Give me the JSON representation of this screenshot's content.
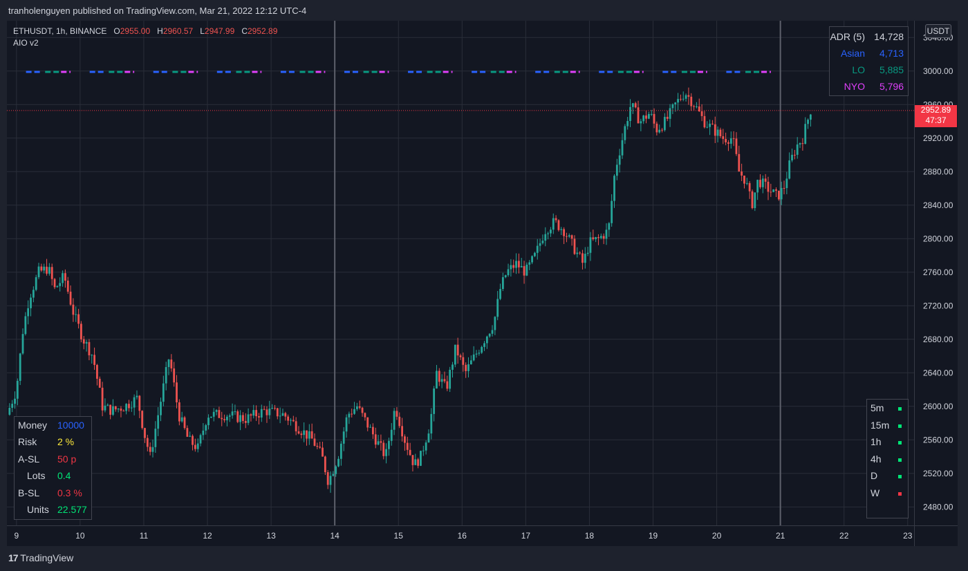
{
  "header": {
    "published": "tranholenguyen published on TradingView.com, Mar 21, 2022 12:12 UTC-4"
  },
  "legend": {
    "symbol": "ETHUSDT, 1h, BINANCE",
    "o_label": "O",
    "o_value": "2955.00",
    "h_label": "H",
    "h_value": "2960.57",
    "l_label": "L",
    "l_value": "2947.99",
    "c_label": "C",
    "c_value": "2952.89",
    "indicator": "AIO v2"
  },
  "adr_table": {
    "rows": [
      {
        "label": "ADR (5)",
        "value": "14,728",
        "color": "#d1d4dc"
      },
      {
        "label": "Asian",
        "value": "4,713",
        "color": "#2962ff"
      },
      {
        "label": "LO",
        "value": "5,885",
        "color": "#089981"
      },
      {
        "label": "NYO",
        "value": "5,796",
        "color": "#e040fb"
      }
    ]
  },
  "risk_table": {
    "rows": [
      {
        "label": "Money",
        "value": "10000",
        "color": "#2962ff"
      },
      {
        "label": "Risk",
        "value": "2 %",
        "color": "#ffeb3b"
      },
      {
        "label": "A-SL",
        "value": "50 p",
        "color": "#f23645"
      },
      {
        "label": "Lots",
        "value": "0.4",
        "color": "#00e676"
      },
      {
        "label": "B-SL",
        "value": "0.3 %",
        "color": "#f23645"
      },
      {
        "label": "Units",
        "value": "22.577",
        "color": "#00e676"
      }
    ]
  },
  "timeframe_table": {
    "rows": [
      {
        "label": "5m",
        "color": "#00e676"
      },
      {
        "label": "15m",
        "color": "#00e676"
      },
      {
        "label": "1h",
        "color": "#00e676"
      },
      {
        "label": "4h",
        "color": "#00e676"
      },
      {
        "label": "D",
        "color": "#00e676"
      },
      {
        "label": "W",
        "color": "#f23645"
      }
    ]
  },
  "price_axis": {
    "currency": "USDT",
    "last_price": "2952.89",
    "countdown": "47:37"
  },
  "footer": {
    "brand": "TradingView"
  },
  "colors": {
    "up": "#26a69a",
    "down": "#ef5350",
    "background": "#131722",
    "grid": "#2a2e39",
    "text": "#d1d4dc"
  },
  "chart_data": {
    "type": "candlestick",
    "symbol": "ETHUSDT",
    "interval": "1h",
    "exchange": "BINANCE",
    "x_ticks": [
      "9",
      "10",
      "11",
      "12",
      "13",
      "14",
      "15",
      "16",
      "17",
      "18",
      "19",
      "20",
      "21",
      "22",
      "23"
    ],
    "y_ticks": [
      "2480.00",
      "2520.00",
      "2560.00",
      "2600.00",
      "2640.00",
      "2680.00",
      "2720.00",
      "2760.00",
      "2800.00",
      "2840.00",
      "2880.00",
      "2920.00",
      "2960.00",
      "3000.00",
      "3040.00"
    ],
    "ylim": [
      2458,
      3060
    ],
    "xlim": [
      8.85,
      23.1
    ],
    "grid": true,
    "last_price_line": 2952.89,
    "day_separators": [
      14,
      21
    ],
    "session_line_price": 2999,
    "path": [
      [
        8.85,
        2590
      ],
      [
        9.0,
        2620
      ],
      [
        9.1,
        2690
      ],
      [
        9.2,
        2730
      ],
      [
        9.35,
        2760
      ],
      [
        9.5,
        2765
      ],
      [
        9.6,
        2740
      ],
      [
        9.75,
        2755
      ],
      [
        9.9,
        2710
      ],
      [
        10.05,
        2680
      ],
      [
        10.2,
        2660
      ],
      [
        10.35,
        2600
      ],
      [
        10.5,
        2595
      ],
      [
        10.7,
        2600
      ],
      [
        10.9,
        2610
      ],
      [
        11.0,
        2570
      ],
      [
        11.1,
        2540
      ],
      [
        11.25,
        2600
      ],
      [
        11.4,
        2660
      ],
      [
        11.55,
        2590
      ],
      [
        11.7,
        2560
      ],
      [
        11.85,
        2550
      ],
      [
        12.0,
        2590
      ],
      [
        12.3,
        2590
      ],
      [
        12.6,
        2585
      ],
      [
        12.9,
        2595
      ],
      [
        13.2,
        2590
      ],
      [
        13.5,
        2570
      ],
      [
        13.65,
        2560
      ],
      [
        13.8,
        2540
      ],
      [
        13.9,
        2510
      ],
      [
        14.05,
        2540
      ],
      [
        14.2,
        2590
      ],
      [
        14.35,
        2600
      ],
      [
        14.5,
        2580
      ],
      [
        14.65,
        2560
      ],
      [
        14.8,
        2540
      ],
      [
        14.95,
        2600
      ],
      [
        15.1,
        2560
      ],
      [
        15.25,
        2530
      ],
      [
        15.35,
        2540
      ],
      [
        15.5,
        2580
      ],
      [
        15.6,
        2640
      ],
      [
        15.75,
        2620
      ],
      [
        15.9,
        2670
      ],
      [
        16.05,
        2640
      ],
      [
        16.2,
        2660
      ],
      [
        16.35,
        2680
      ],
      [
        16.5,
        2700
      ],
      [
        16.6,
        2740
      ],
      [
        16.7,
        2760
      ],
      [
        16.85,
        2770
      ],
      [
        17.0,
        2760
      ],
      [
        17.15,
        2780
      ],
      [
        17.3,
        2810
      ],
      [
        17.45,
        2820
      ],
      [
        17.6,
        2810
      ],
      [
        17.75,
        2790
      ],
      [
        17.9,
        2770
      ],
      [
        18.0,
        2795
      ],
      [
        18.15,
        2800
      ],
      [
        18.3,
        2810
      ],
      [
        18.4,
        2880
      ],
      [
        18.55,
        2930
      ],
      [
        18.65,
        2960
      ],
      [
        18.8,
        2940
      ],
      [
        18.95,
        2950
      ],
      [
        19.05,
        2930
      ],
      [
        19.2,
        2940
      ],
      [
        19.35,
        2960
      ],
      [
        19.5,
        2975
      ],
      [
        19.65,
        2960
      ],
      [
        19.8,
        2940
      ],
      [
        19.95,
        2930
      ],
      [
        20.1,
        2920
      ],
      [
        20.25,
        2920
      ],
      [
        20.35,
        2880
      ],
      [
        20.45,
        2870
      ],
      [
        20.55,
        2840
      ],
      [
        20.65,
        2870
      ],
      [
        20.8,
        2860
      ],
      [
        20.95,
        2850
      ],
      [
        21.05,
        2860
      ],
      [
        21.15,
        2890
      ],
      [
        21.25,
        2910
      ],
      [
        21.35,
        2920
      ],
      [
        21.48,
        2955
      ]
    ]
  }
}
